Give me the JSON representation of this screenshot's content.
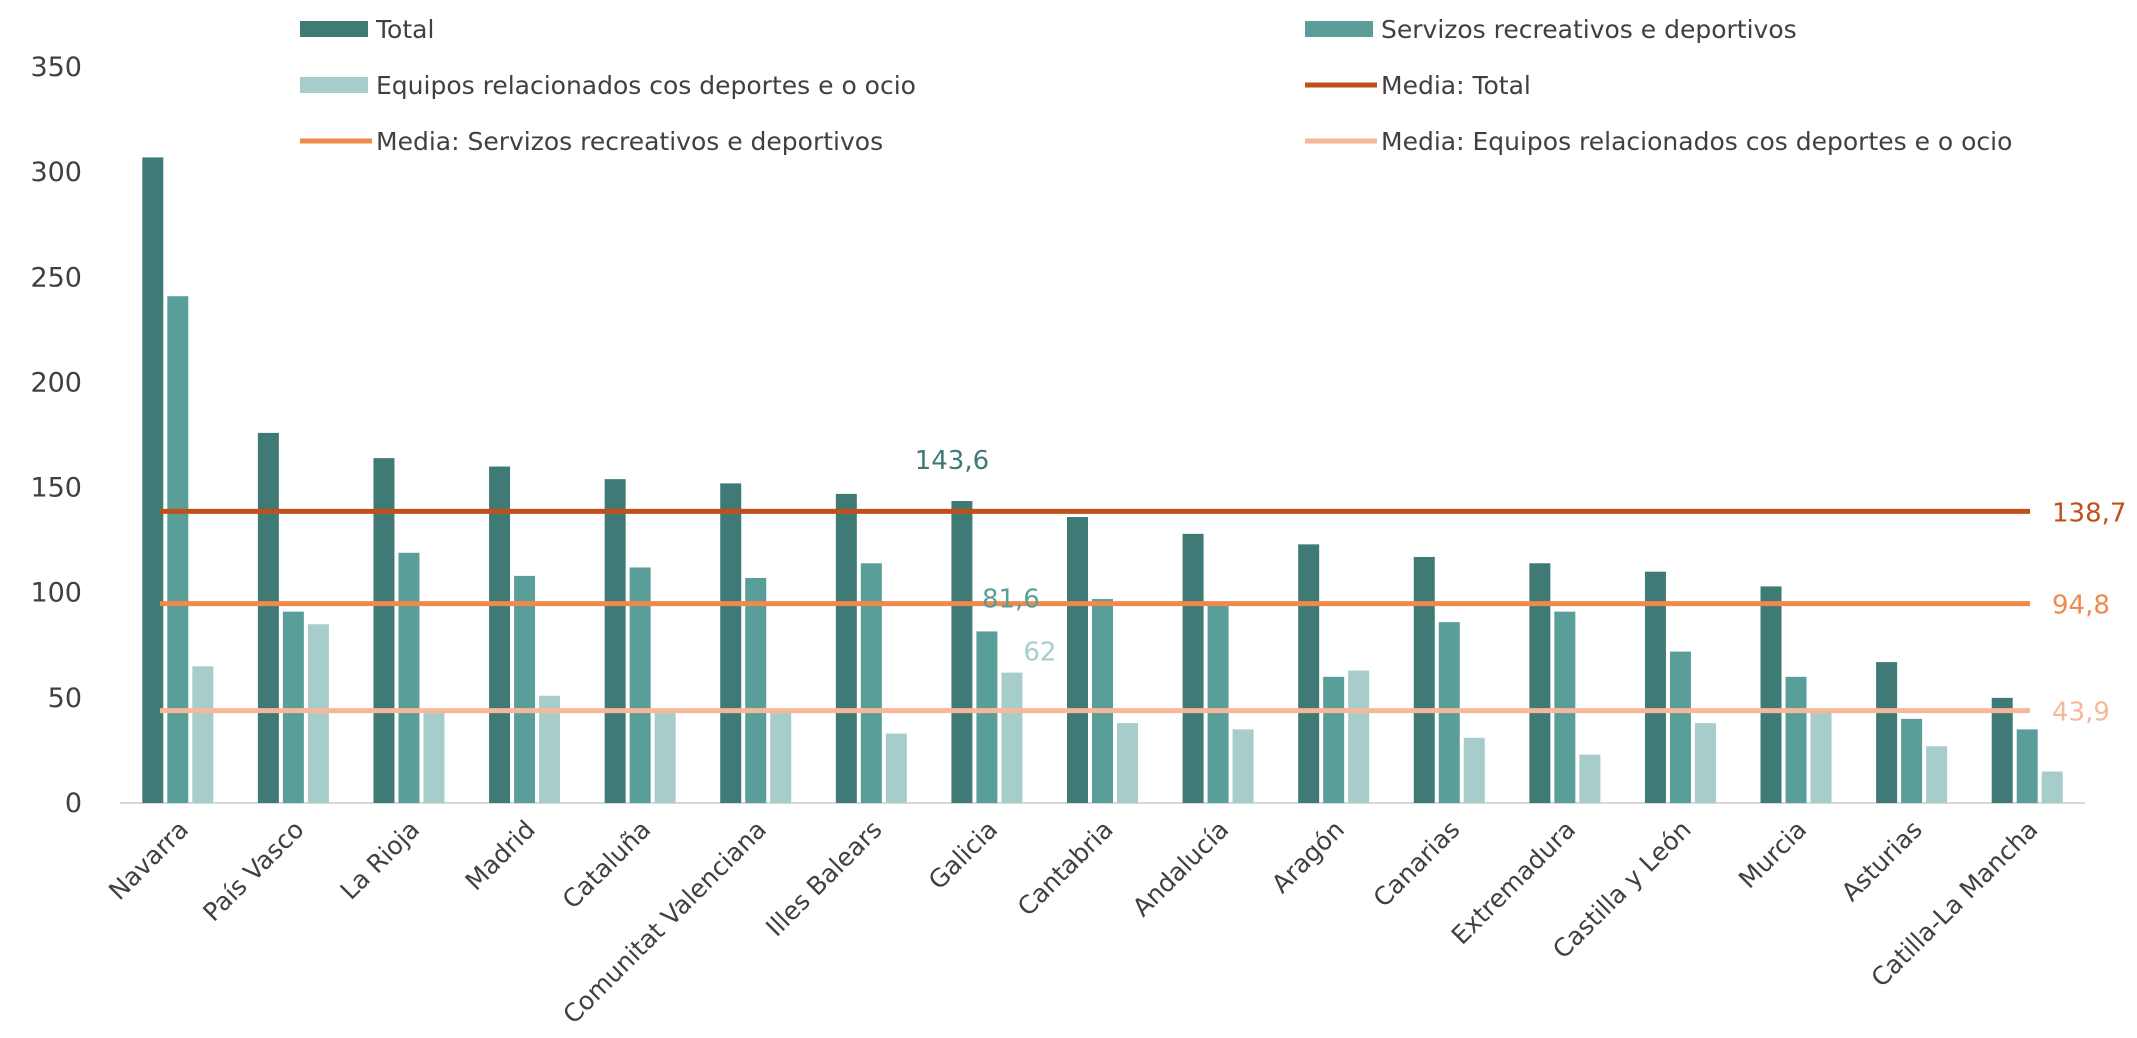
{
  "chart_data": {
    "type": "bar",
    "title": "",
    "xlabel": "",
    "ylabel": "",
    "ylim": [
      0,
      350
    ],
    "yticks": [
      "0",
      "50",
      "100",
      "150",
      "200",
      "250",
      "300",
      "350"
    ],
    "grid": false,
    "legend_position": "top",
    "categories": [
      "Navarra",
      "País Vasco",
      "La Rioja",
      "Madrid",
      "Cataluña",
      "Comunitat Valenciana",
      "Illes Balears",
      "Galicia",
      "Cantabria",
      "Andalucía",
      "Aragón",
      "Canarias",
      "Extremadura",
      "Castilla y León",
      "Murcia",
      "Asturias",
      "Catilla-La Mancha"
    ],
    "series": [
      {
        "name": "Total",
        "color": "#3f7a76",
        "values": [
          307,
          176,
          164,
          160,
          154,
          152,
          147,
          143.6,
          136,
          128,
          123,
          117,
          114,
          110,
          103,
          67,
          50
        ]
      },
      {
        "name": "Servizos  recreativos e deportivos",
        "color": "#5a9e9a",
        "values": [
          241,
          91,
          119,
          108,
          112,
          107,
          114,
          81.6,
          97,
          94,
          60,
          86,
          91,
          72,
          60,
          40,
          35
        ]
      },
      {
        "name": "Equipos relacionados cos deportes e o ocio",
        "color": "#a7cdca",
        "values": [
          65,
          85,
          43,
          51,
          43,
          43,
          33,
          62,
          38,
          35,
          63,
          31,
          23,
          38,
          44,
          27,
          15
        ]
      }
    ],
    "reference_lines": [
      {
        "name": "Media: Total",
        "value": 138.7,
        "label": "138,7",
        "color": "#c0501a"
      },
      {
        "name": "Media: Servizos  recreativos e deportivos",
        "value": 94.8,
        "label": "94,8",
        "color": "#f08a4b"
      },
      {
        "name": "Media: Equipos relacionados cos deportes e o ocio",
        "value": 43.9,
        "label": "43,9",
        "color": "#f7b899"
      }
    ],
    "data_labels": [
      {
        "category": "Galicia",
        "series": "Total",
        "value": 143.6,
        "text": "143,6"
      },
      {
        "category": "Galicia",
        "series": "Servizos  recreativos e deportivos",
        "value": 81.6,
        "text": "81,6"
      },
      {
        "category": "Galicia",
        "series": "Equipos relacionados cos deportes e o ocio",
        "value": 62,
        "text": "62"
      }
    ]
  }
}
